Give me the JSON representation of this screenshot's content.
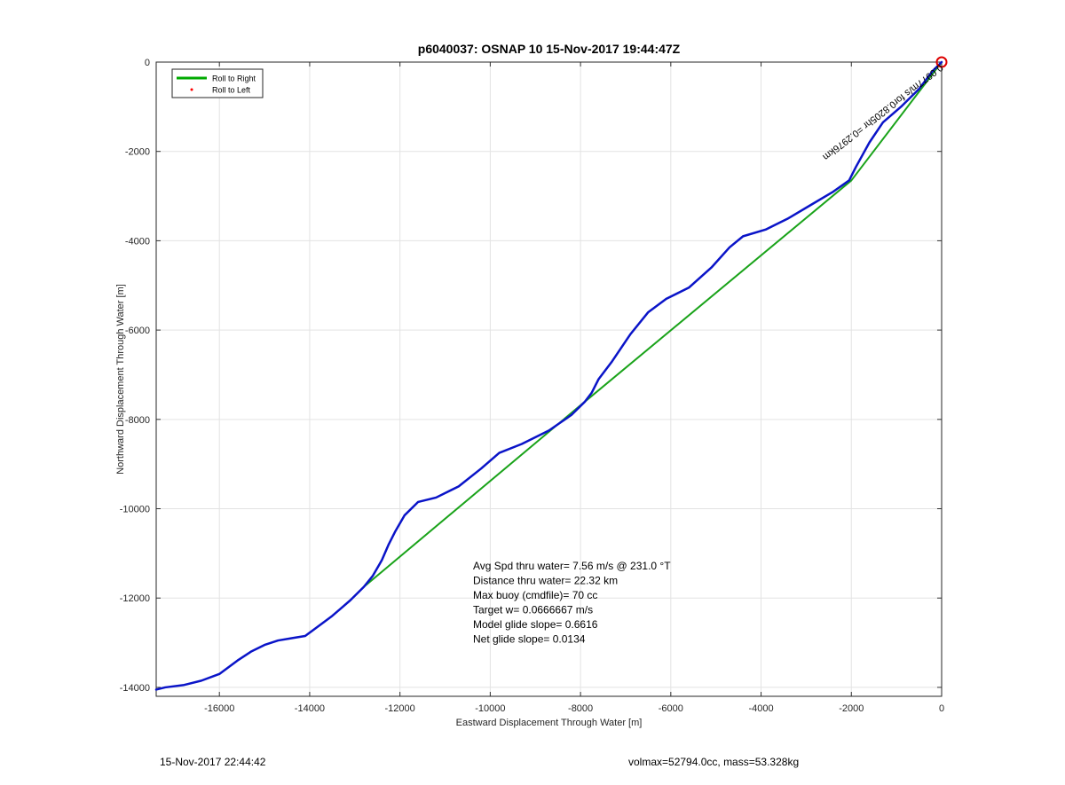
{
  "chart_data": {
    "type": "line",
    "title": "p6040037: OSNAP 10 15-Nov-2017 19:44:47Z",
    "xlabel": "Eastward Displacement Through Water [m]",
    "ylabel": "Northward Displacement Through Water [m]",
    "xlim": [
      -17400,
      0
    ],
    "ylim": [
      -14200,
      0
    ],
    "xticks": [
      -16000,
      -14000,
      -12000,
      -10000,
      -8000,
      -6000,
      -4000,
      -2000,
      0
    ],
    "yticks": [
      0,
      -2000,
      -4000,
      -6000,
      -8000,
      -10000,
      -12000,
      -14000
    ],
    "grid": true,
    "legend_position": "top-left",
    "legend": [
      {
        "label": "Roll to Right",
        "color": "#00aa00",
        "style": "line"
      },
      {
        "label": "Roll to Left",
        "color": "#ff0000",
        "style": "dot"
      }
    ],
    "series": [
      {
        "name": "Roll to Right",
        "color": "#1aa31a",
        "x": [
          0,
          -2000,
          -7900,
          -12800
        ],
        "y": [
          0,
          -2650,
          -7600,
          -11750
        ]
      },
      {
        "color": "#0a14c8",
        "x": [
          0,
          -200,
          -500,
          -900,
          -1300,
          -1600,
          -1900,
          -2050,
          -2400,
          -2900,
          -3400,
          -3900,
          -4400,
          -4700,
          -5100,
          -5600,
          -6100,
          -6500,
          -6900,
          -7300,
          -7600,
          -7750,
          -7900,
          -8200,
          -8700,
          -9300,
          -9800,
          -10200,
          -10700,
          -11200,
          -11600,
          -11900,
          -12100,
          -12250,
          -12400,
          -12600,
          -12800,
          -13100,
          -13500,
          -13900,
          -14100,
          -14400,
          -14700,
          -15000,
          -15300,
          -15600,
          -16000,
          -16400,
          -16800,
          -17200,
          -17400
        ],
        "y": [
          0,
          -200,
          -600,
          -1000,
          -1350,
          -1800,
          -2350,
          -2650,
          -2900,
          -3200,
          -3500,
          -3750,
          -3900,
          -4150,
          -4600,
          -5050,
          -5300,
          -5600,
          -6100,
          -6700,
          -7100,
          -7400,
          -7600,
          -7900,
          -8250,
          -8550,
          -8750,
          -9100,
          -9500,
          -9750,
          -9850,
          -10150,
          -10500,
          -10800,
          -11150,
          -11500,
          -11750,
          -12050,
          -12400,
          -12700,
          -12850,
          -12900,
          -12950,
          -13050,
          -13200,
          -13400,
          -13700,
          -13850,
          -13950,
          -14000,
          -14050
        ]
      }
    ],
    "start_marker": {
      "x": 0,
      "y": 0,
      "color": "#dd0000"
    },
    "rotated_annotation": "0.0977m/s for0.8205hr =0.2976km",
    "stats": [
      "Avg Spd thru water=  7.56 m/s @ 231.0 °T",
      "Distance thru water= 22.32 km",
      "Max buoy (cmdfile)= 70 cc",
      "Target w= 0.0666667 m/s",
      "Model glide slope= 0.6616",
      "Net glide slope= 0.0134"
    ]
  },
  "footer": {
    "timestamp": "15-Nov-2017 22:44:42",
    "volmax": "volmax=52794.0cc, mass=53.328kg"
  }
}
